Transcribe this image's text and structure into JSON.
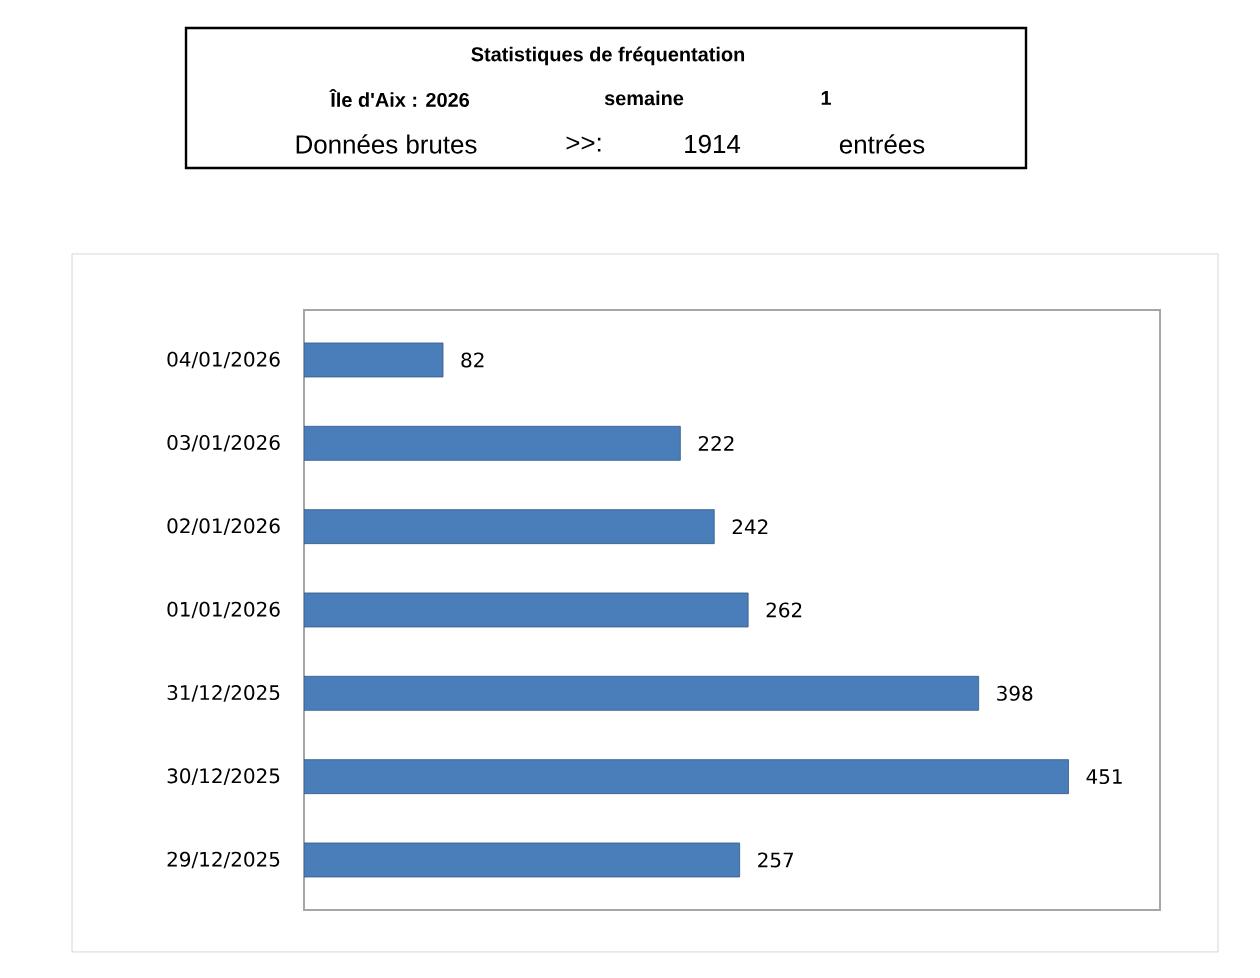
{
  "chart_data": {
    "type": "bar",
    "orientation": "horizontal",
    "title": "Statistiques de  fréquentation",
    "subtitle": "Île d'Aix :  2026",
    "annotations": [
      "semaine",
      "1",
      "Données brutes",
      ">>:",
      "1914",
      "entrées"
    ],
    "categories": [
      "04/01/2026",
      "03/01/2026",
      "02/01/2026",
      "01/01/2026",
      "31/12/2025",
      "30/12/2025",
      "29/12/2025"
    ],
    "values": [
      82,
      222,
      242,
      262,
      398,
      451,
      257
    ],
    "color": "#4a7ebb",
    "data_labels": true
  }
}
